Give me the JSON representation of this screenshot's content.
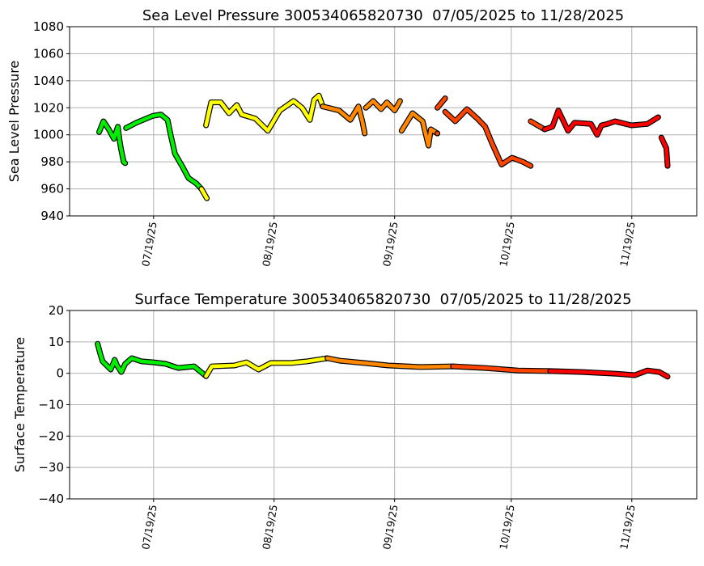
{
  "chart_data": [
    {
      "type": "scatter",
      "title": "Sea Level Pressure 300534065820730  07/05/2025 to 11/28/2025",
      "xlabel": "",
      "ylabel": "Sea Level Pressure",
      "x_units": "days since 07/05/2025",
      "xlim": [
        -7.6,
        153.7
      ],
      "ylim": [
        940,
        1080
      ],
      "yticks": [
        940,
        960,
        980,
        1000,
        1020,
        1040,
        1060,
        1080
      ],
      "xticks": [
        {
          "day": 14,
          "label": "07/19/25"
        },
        {
          "day": 45,
          "label": "08/19/25"
        },
        {
          "day": 76,
          "label": "09/19/25"
        },
        {
          "day": 106,
          "label": "10/19/25"
        },
        {
          "day": 137,
          "label": "11/19/25"
        }
      ],
      "grid": true,
      "segments": [
        [
          [
            0,
            1002
          ],
          [
            1.1,
            1010
          ],
          [
            2.5,
            1004
          ],
          [
            3.8,
            997
          ],
          [
            4.8,
            1006
          ],
          [
            5.2,
            997
          ],
          [
            5.6,
            990
          ],
          [
            6.3,
            980
          ],
          [
            6.7,
            979
          ]
        ],
        [
          [
            6.9,
            1005
          ],
          [
            9.6,
            1009
          ],
          [
            13.8,
            1014
          ],
          [
            15.9,
            1015
          ],
          [
            17.6,
            1011
          ],
          [
            18.4,
            1000
          ],
          [
            19.5,
            986
          ],
          [
            21.5,
            976
          ],
          [
            23,
            968
          ],
          [
            25,
            964
          ],
          [
            26.3,
            960
          ],
          [
            27.7,
            953
          ]
        ],
        [
          [
            27.5,
            1007
          ],
          [
            28.8,
            1024
          ],
          [
            31.3,
            1024
          ],
          [
            33.4,
            1016
          ],
          [
            35.4,
            1022
          ],
          [
            36.7,
            1015
          ],
          [
            40.2,
            1012
          ],
          [
            43.4,
            1003
          ],
          [
            46.5,
            1018
          ],
          [
            50,
            1025
          ],
          [
            52.2,
            1020
          ],
          [
            54.2,
            1011
          ],
          [
            55.3,
            1026
          ],
          [
            56.5,
            1029
          ],
          [
            57.5,
            1021
          ],
          [
            61.7,
            1018
          ],
          [
            64.6,
            1011
          ],
          [
            66.7,
            1021
          ],
          [
            67.7,
            1010
          ],
          [
            68.3,
            1001
          ]
        ],
        [
          [
            68.6,
            1020
          ],
          [
            70.5,
            1025
          ],
          [
            72.5,
            1019
          ],
          [
            74,
            1024
          ],
          [
            76,
            1018
          ],
          [
            77.4,
            1025
          ]
        ],
        [
          [
            77.8,
            1003
          ],
          [
            80.6,
            1016
          ],
          [
            83.2,
            1010
          ],
          [
            84.7,
            992
          ],
          [
            85.3,
            1004
          ],
          [
            87,
            1001
          ]
        ],
        [
          [
            87,
            1020
          ],
          [
            89,
            1027
          ]
        ],
        [
          [
            89,
            1017
          ],
          [
            91.6,
            1010
          ],
          [
            94.6,
            1019
          ],
          [
            97.3,
            1012
          ],
          [
            99.3,
            1006
          ],
          [
            101,
            994
          ],
          [
            103.5,
            978
          ],
          [
            106.2,
            983
          ],
          [
            109,
            980
          ],
          [
            111,
            977
          ]
        ],
        [
          [
            111,
            1010
          ],
          [
            114.6,
            1004
          ],
          [
            116.6,
            1006
          ],
          [
            118.1,
            1018
          ],
          [
            120.6,
            1003
          ],
          [
            122.3,
            1009
          ],
          [
            126.5,
            1008
          ],
          [
            128.1,
            1000
          ],
          [
            129.2,
            1007
          ],
          [
            130.7,
            1008
          ],
          [
            132.7,
            1010
          ],
          [
            136.9,
            1007
          ],
          [
            141,
            1008
          ],
          [
            143.8,
            1013
          ]
        ],
        [
          [
            144.6,
            998
          ],
          [
            145.9,
            990
          ],
          [
            146.2,
            977
          ]
        ]
      ]
    },
    {
      "type": "scatter",
      "title": "Surface Temperature 300534065820730  07/05/2025 to 11/28/2025",
      "xlabel": "",
      "ylabel": "Surface Temperature",
      "x_units": "days since 07/05/2025",
      "xlim": [
        -7.6,
        153.7
      ],
      "ylim": [
        -40,
        20
      ],
      "yticks": [
        -40,
        -30,
        -20,
        -10,
        0,
        10,
        20
      ],
      "xticks": [
        {
          "day": 14,
          "label": "07/19/25"
        },
        {
          "day": 45,
          "label": "08/19/25"
        },
        {
          "day": 76,
          "label": "09/19/25"
        },
        {
          "day": 106,
          "label": "10/19/25"
        },
        {
          "day": 137,
          "label": "11/19/25"
        }
      ],
      "grid": true,
      "segments": [
        [
          [
            -0.4,
            9.4
          ],
          [
            0.3,
            6.1
          ],
          [
            0.9,
            3.8
          ],
          [
            3,
            1.2
          ],
          [
            4,
            4.3
          ],
          [
            4.6,
            2.5
          ],
          [
            5.7,
            0.4
          ],
          [
            6.7,
            3
          ],
          [
            8.4,
            4.8
          ],
          [
            10.9,
            3.8
          ],
          [
            14,
            3.5
          ],
          [
            17.1,
            3
          ],
          [
            20.3,
            1.7
          ],
          [
            24.4,
            2.2
          ],
          [
            27.5,
            -0.9
          ],
          [
            29,
            2.2
          ],
          [
            34.8,
            2.5
          ],
          [
            37.9,
            3.5
          ],
          [
            41,
            1.2
          ],
          [
            44.2,
            3.3
          ],
          [
            49.4,
            3.3
          ],
          [
            53.5,
            3.8
          ],
          [
            58.7,
            4.8
          ],
          [
            61.9,
            4
          ],
          [
            68.1,
            3.3
          ],
          [
            74.4,
            2.5
          ],
          [
            82.7,
            2
          ],
          [
            91,
            2.2
          ],
          [
            99.3,
            1.7
          ],
          [
            107.7,
            0.9
          ],
          [
            116,
            0.7
          ],
          [
            124.3,
            0.4
          ],
          [
            132.6,
            -0.1
          ],
          [
            137.8,
            -0.6
          ],
          [
            141,
            0.9
          ],
          [
            144.1,
            0.4
          ],
          [
            146.2,
            -1.1
          ]
        ]
      ]
    }
  ],
  "color_scale": [
    {
      "until_day": 26,
      "color": "#00ee00"
    },
    {
      "until_day": 57,
      "color": "#ffff00"
    },
    {
      "until_day": 87,
      "color": "#ff8800"
    },
    {
      "until_day": 112,
      "color": "#ff4400"
    },
    {
      "until_day": 999,
      "color": "#ff0000"
    }
  ]
}
